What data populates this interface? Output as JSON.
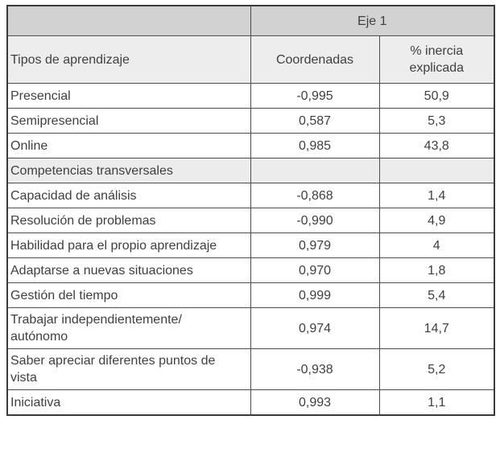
{
  "page": {
    "background": "#ffffff"
  },
  "table": {
    "axis_label": "Eje 1",
    "columns": [
      "Tipos de aprendizaje",
      "Coordenadas",
      "% inercia explicada"
    ],
    "rows": [
      {
        "label": "Presencial",
        "coordenadas": "-0,995",
        "inercia": "50,9",
        "section": false
      },
      {
        "label": "Semipresencial",
        "coordenadas": "0,587",
        "inercia": "5,3",
        "section": false
      },
      {
        "label": "Online",
        "coordenadas": "0,985",
        "inercia": "43,8",
        "section": false
      },
      {
        "label": "Competencias transversales",
        "coordenadas": "",
        "inercia": "",
        "section": true
      },
      {
        "label": "Capacidad de análisis",
        "coordenadas": "-0,868",
        "inercia": "1,4",
        "section": false
      },
      {
        "label": "Resolución de problemas",
        "coordenadas": "-0,990",
        "inercia": "4,9",
        "section": false
      },
      {
        "label": "Habilidad para el propio aprendizaje",
        "coordenadas": "0,979",
        "inercia": "4",
        "section": false
      },
      {
        "label": "Adaptarse a nuevas situaciones",
        "coordenadas": "0,970",
        "inercia": "1,8",
        "section": false
      },
      {
        "label": "Gestión del tiempo",
        "coordenadas": "0,999",
        "inercia": "5,4",
        "section": false
      },
      {
        "label": "Trabajar independientemente/ autónomo",
        "coordenadas": "0,974",
        "inercia": "14,7",
        "section": false
      },
      {
        "label": "Saber apreciar diferentes puntos de vista",
        "coordenadas": "-0,938",
        "inercia": "5,2",
        "section": false
      },
      {
        "label": "Iniciativa",
        "coordenadas": "0,993",
        "inercia": "1,1",
        "section": false
      }
    ],
    "colors": {
      "axis_header_bg": "#d2d2d2",
      "column_header_bg": "#ededed",
      "section_row_bg": "#ececec",
      "border": "#4d4d4d",
      "outer_border": "#3a3a3a",
      "text": "#3f3f3f",
      "row_bg": "#ffffff"
    }
  }
}
